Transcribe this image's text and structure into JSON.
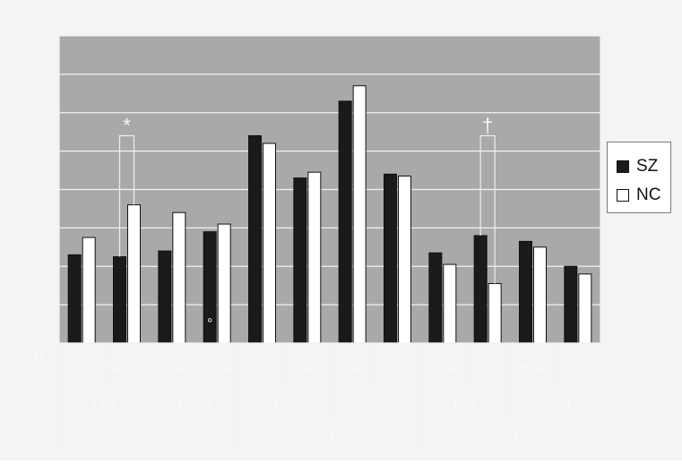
{
  "chart_data": {
    "type": "bar",
    "y_unit": "fT",
    "ylim": [
      0,
      80
    ],
    "y_ticks": [
      "0",
      "10",
      "20",
      "30",
      "40",
      "50",
      "60",
      "70",
      "80"
    ],
    "grid": true,
    "legend_position": "right",
    "categories": [
      {
        "time": "0-50",
        "time_suffix": "msec",
        "hemisphere": "Left",
        "stimulus": "tone"
      },
      {
        "time": "0-50",
        "time_suffix": "msec",
        "hemisphere": "Left",
        "stimulus": "voice"
      },
      {
        "time": "0-50",
        "time_suffix": "msec",
        "hemisphere": "Right",
        "stimulus": "tone"
      },
      {
        "time": "0-50",
        "time_suffix": "msec",
        "hemisphere": "Right",
        "stimulus": "voice"
      },
      {
        "time": "50-100",
        "hemisphere": "Left",
        "stimulus": "tone"
      },
      {
        "time": "50-100",
        "hemisphere": "Left",
        "stimulus": "voice"
      },
      {
        "time": "50-100",
        "hemisphere": "Right",
        "stimulus": "tone"
      },
      {
        "time": "50-100",
        "hemisphere": "Right",
        "stimulus": "voice"
      },
      {
        "time": "100-150",
        "hemisphere": "Left",
        "stimulus": "tone"
      },
      {
        "time": "100-150",
        "hemisphere": "Left",
        "stimulus": "voice"
      },
      {
        "time": "100-150",
        "hemisphere": "Right",
        "stimulus": "tone"
      },
      {
        "time": "100-150",
        "hemisphere": "Right",
        "stimulus": "voice"
      }
    ],
    "series": [
      {
        "name": "SZ",
        "color": "#1a1a1a",
        "values": [
          23,
          22.5,
          24,
          29,
          54,
          43,
          63,
          44,
          23.5,
          28,
          26.5,
          20
        ]
      },
      {
        "name": "NC",
        "color": "#ffffff",
        "values": [
          27.5,
          36,
          34,
          31,
          52,
          44.5,
          67,
          43.5,
          20.5,
          15.5,
          25,
          18
        ]
      }
    ],
    "time_windows": [
      {
        "label": "0-50",
        "suffix": "msec"
      },
      {
        "label": "50-100",
        "suffix": ""
      },
      {
        "label": "100-150",
        "suffix": ""
      }
    ],
    "annotations": [
      {
        "text": "*",
        "category_index": 1,
        "bracket_top": 54
      },
      {
        "text": "†",
        "category_index": 9,
        "bracket_top": 54
      },
      {
        "text": "°",
        "category_index": 3,
        "y": 4
      }
    ]
  }
}
